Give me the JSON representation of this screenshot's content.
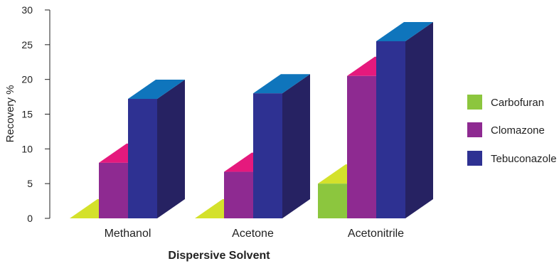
{
  "chart_data": {
    "type": "bar",
    "style": "3d-clustered",
    "categories": [
      "Methanol",
      "Acetone",
      "Acetonitrile"
    ],
    "series": [
      {
        "name": "Carbofuran",
        "values": [
          0,
          0,
          5
        ],
        "colors": {
          "front": "#8cc63e",
          "top": "#d4e12b",
          "side": "#6a9a2a"
        }
      },
      {
        "name": "Clomazone",
        "values": [
          8,
          6.7,
          20.5
        ],
        "colors": {
          "front": "#8e2a91",
          "top": "#e5197d",
          "side": "#5e1c60"
        }
      },
      {
        "name": "Tebuconazole",
        "values": [
          17.2,
          18,
          25.5
        ],
        "colors": {
          "front": "#2e3192",
          "top": "#0f75bc",
          "side": "#262262"
        }
      }
    ],
    "ylabel": "Recovery %",
    "xlabel": "Dispersive Solvent",
    "ylim": [
      0,
      30
    ],
    "yticks": [
      0,
      5,
      10,
      15,
      20,
      25,
      30
    ],
    "grid": false,
    "legend_position": "right"
  }
}
